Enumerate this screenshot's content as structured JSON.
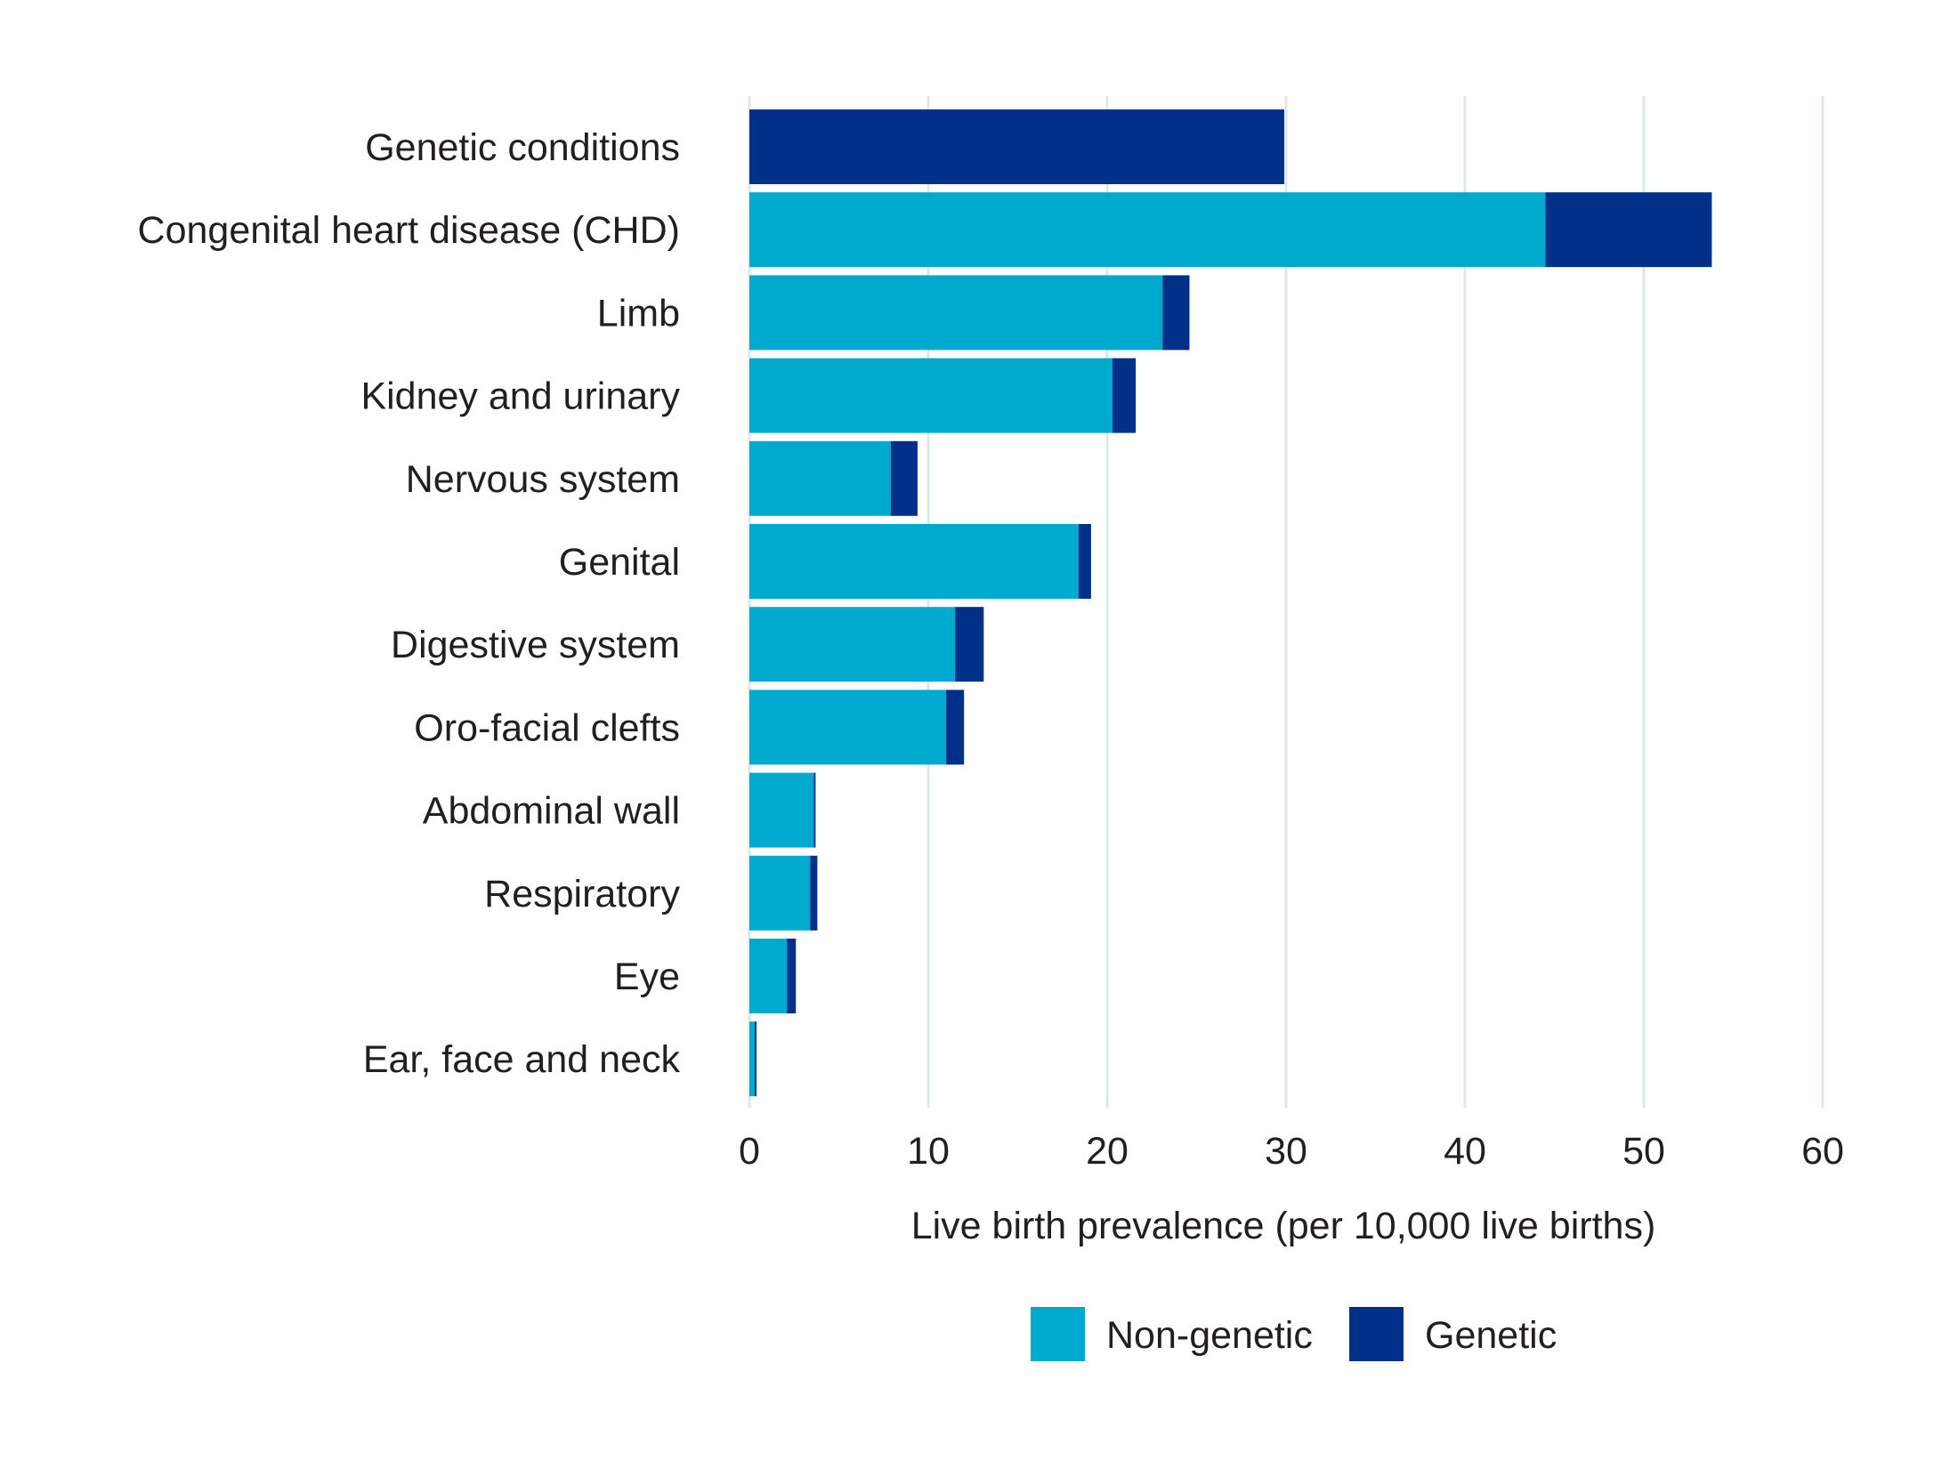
{
  "chart_data": {
    "type": "bar",
    "orientation": "horizontal",
    "stacked": true,
    "categories": [
      "Genetic conditions",
      "Congenital heart disease (CHD)",
      "Limb",
      "Kidney and urinary",
      "Nervous system",
      "Genital",
      "Digestive system",
      "Oro-facial clefts",
      "Abdominal wall",
      "Respiratory",
      "Eye",
      "Ear, face and neck"
    ],
    "series": [
      {
        "name": "Non-genetic",
        "color": "#00a9ce",
        "values": [
          0,
          44.5,
          23.1,
          20.3,
          7.9,
          18.4,
          11.5,
          11.0,
          3.6,
          3.4,
          2.1,
          0.3
        ]
      },
      {
        "name": "Genetic",
        "color": "#003087",
        "values": [
          29.9,
          9.3,
          1.5,
          1.3,
          1.5,
          0.7,
          1.6,
          1.0,
          0.1,
          0.4,
          0.5,
          0.1
        ]
      }
    ],
    "xlabel": "Live birth prevalence (per 10,000 live births)",
    "ylabel": "",
    "title": "",
    "xlim": [
      0,
      60
    ],
    "xticks": [
      0,
      10,
      20,
      30,
      40,
      50,
      60
    ],
    "grid": "vertical",
    "legend": "bottom"
  }
}
